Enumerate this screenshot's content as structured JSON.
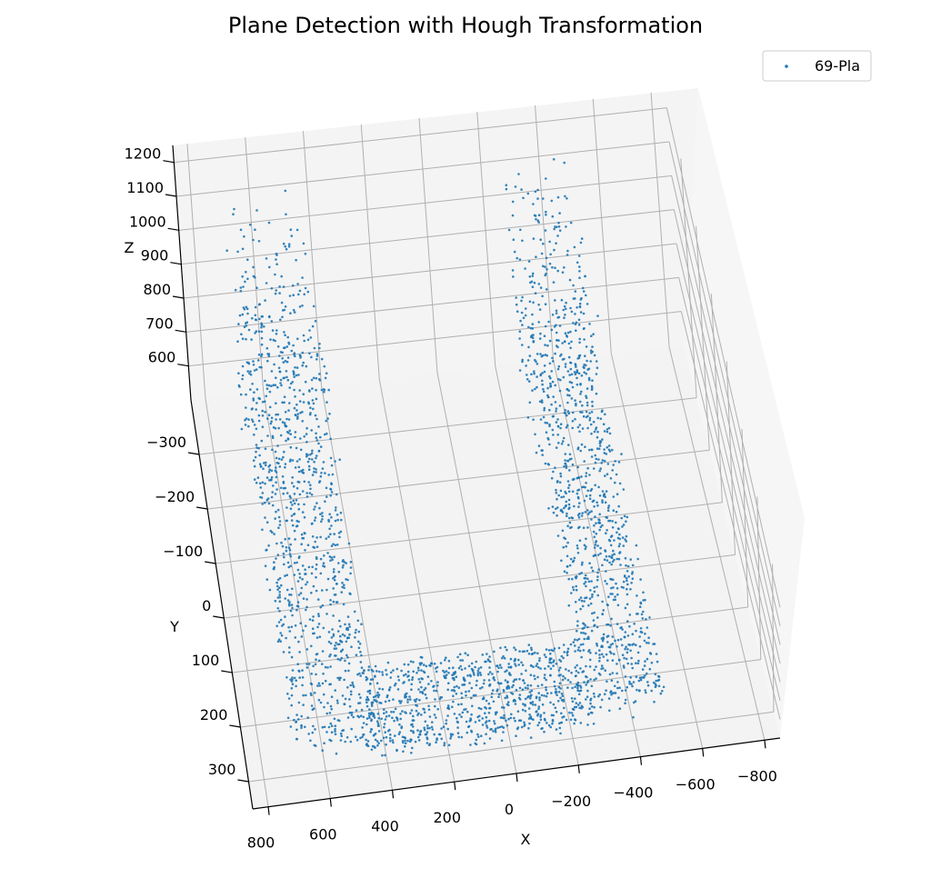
{
  "chart_data": {
    "type": "scatter",
    "projection": "3d",
    "title": "Plane Detection with Hough Transformation",
    "xlabel": "X",
    "ylabel": "Y",
    "zlabel": "Z",
    "xlim": [
      -850,
      850
    ],
    "ylim": [
      -400,
      350
    ],
    "zlim": [
      500,
      1250
    ],
    "x_ticks": [
      800,
      600,
      400,
      200,
      0,
      -200,
      -400,
      -600,
      -800
    ],
    "x_tick_labels": [
      "800",
      "600",
      "400",
      "200",
      "0",
      "−200",
      "−400",
      "−600",
      "−800"
    ],
    "y_ticks": [
      -300,
      -200,
      -100,
      0,
      100,
      200,
      300
    ],
    "y_tick_labels": [
      "−300",
      "−200",
      "−100",
      "0",
      "100",
      "200",
      "300"
    ],
    "z_ticks": [
      600,
      700,
      800,
      900,
      1000,
      1100,
      1200
    ],
    "z_tick_labels": [
      "600",
      "700",
      "800",
      "900",
      "1000",
      "1100",
      "1200"
    ],
    "grid": true,
    "legend_position": "top-right",
    "series": [
      {
        "name": "69-Pla",
        "color": "#1f77b4",
        "marker": "point",
        "shape": "U-shaped channel",
        "approx_point_count": 3000,
        "regions": [
          {
            "part": "left wall",
            "x_range": [
              430,
              700
            ],
            "y_range": [
              -380,
              300
            ],
            "z_range": [
              550,
              1150
            ]
          },
          {
            "part": "right wall",
            "x_range": [
              -500,
              -260
            ],
            "y_range": [
              -380,
              300
            ],
            "z_range": [
              550,
              1150
            ]
          },
          {
            "part": "floor",
            "x_range": [
              -280,
              440
            ],
            "y_range": [
              150,
              300
            ],
            "z_range": [
              520,
              600
            ]
          }
        ]
      }
    ]
  }
}
